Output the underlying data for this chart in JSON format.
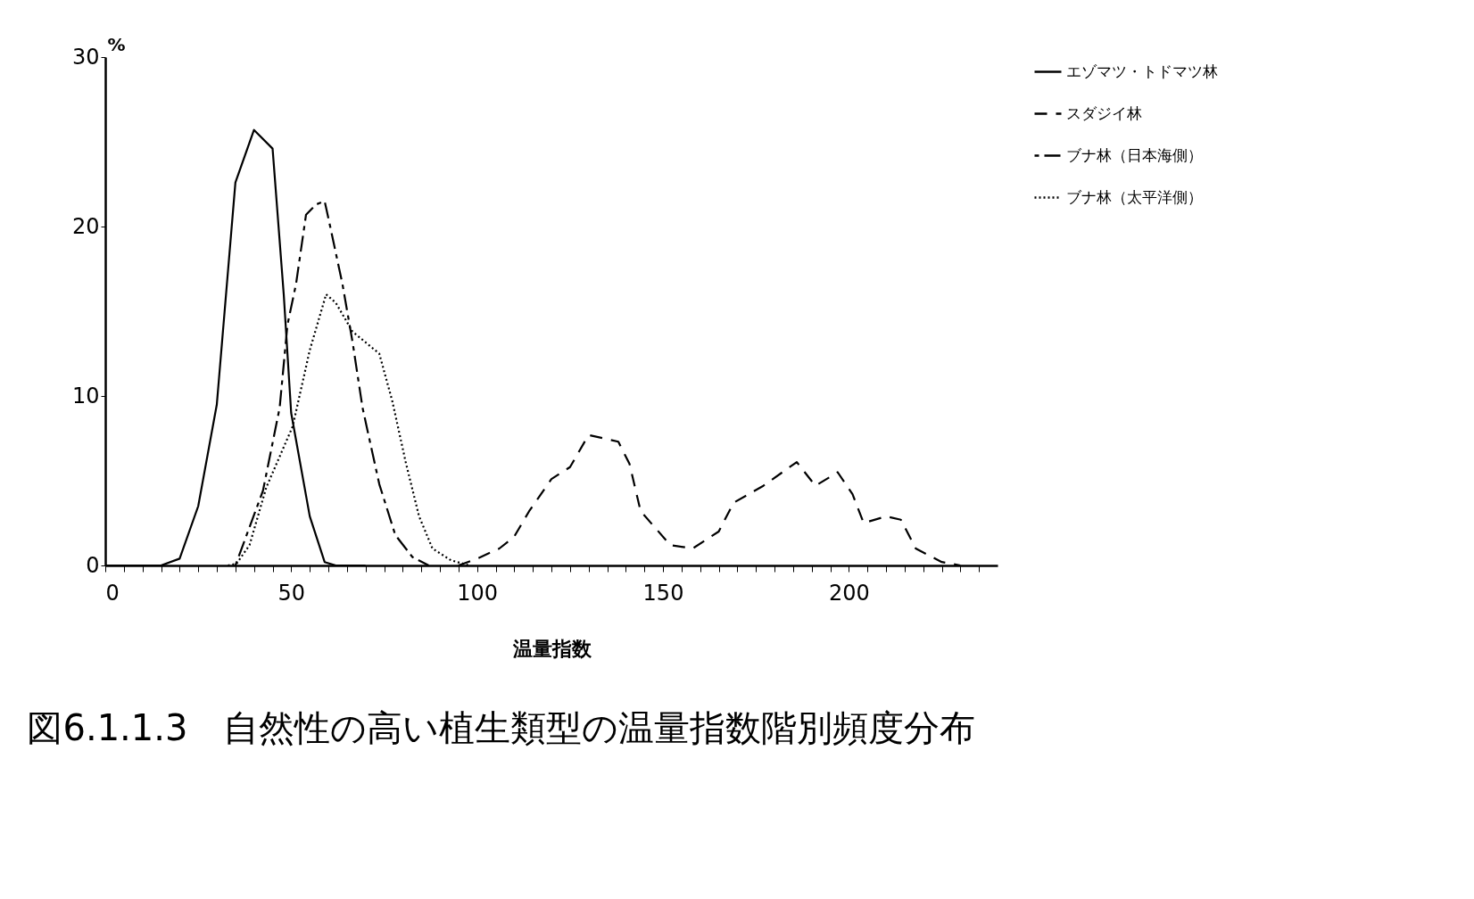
{
  "chart_data": {
    "type": "line",
    "xlabel": "温量指数",
    "ylabel": "%",
    "annotations": [
      "図6.1.1.3　自然性の高い植生類型の温量指数階別頻度分布"
    ],
    "xlim": [
      0,
      240
    ],
    "ylim": [
      0,
      30
    ],
    "xticks": [
      0,
      {
        "value": 5,
        "label": null
      },
      {
        "value": 10,
        "label": null
      },
      {
        "value": 15,
        "label": null
      },
      {
        "value": 20,
        "label": null
      },
      {
        "value": 25,
        "label": null
      },
      {
        "value": 30,
        "label": null
      },
      {
        "value": 35,
        "label": null
      },
      {
        "value": 40,
        "label": null
      },
      {
        "value": 45,
        "label": null
      },
      50,
      {
        "value": 55,
        "label": null
      },
      {
        "value": 60,
        "label": null
      },
      {
        "value": 65,
        "label": null
      },
      {
        "value": 70,
        "label": null
      },
      {
        "value": 75,
        "label": null
      },
      {
        "value": 80,
        "label": null
      },
      {
        "value": 85,
        "label": null
      },
      {
        "value": 90,
        "label": null
      },
      {
        "value": 95,
        "label": null
      },
      100,
      {
        "value": 105,
        "label": null
      },
      {
        "value": 110,
        "label": null
      },
      {
        "value": 115,
        "label": null
      },
      {
        "value": 120,
        "label": null
      },
      {
        "value": 125,
        "label": null
      },
      {
        "value": 130,
        "label": null
      },
      {
        "value": 135,
        "label": null
      },
      {
        "value": 140,
        "label": null
      },
      {
        "value": 145,
        "label": null
      },
      150,
      {
        "value": 155,
        "label": null
      },
      {
        "value": 160,
        "label": null
      },
      {
        "value": 165,
        "label": null
      },
      {
        "value": 170,
        "label": null
      },
      {
        "value": 175,
        "label": null
      },
      {
        "value": 180,
        "label": null
      },
      {
        "value": 185,
        "label": null
      },
      {
        "value": 190,
        "label": null
      },
      {
        "value": 195,
        "label": null
      },
      200,
      {
        "value": 205,
        "label": null
      },
      {
        "value": 210,
        "label": null
      },
      {
        "value": 215,
        "label": null
      },
      {
        "value": 220,
        "label": null
      },
      {
        "value": 225,
        "label": null
      },
      {
        "value": 230,
        "label": null
      },
      {
        "value": 235,
        "label": null
      }
    ],
    "yticks": [
      0,
      10,
      20,
      30
    ],
    "grid": false,
    "legend": "top right",
    "marker": "none",
    "series": [
      {
        "name": "エゾマツ・トドマツ林",
        "color": "#000000",
        "line_style": "solid",
        "x": [
          0,
          15,
          20,
          25,
          30,
          35,
          40,
          45,
          48,
          50,
          55,
          59,
          62,
          70
        ],
        "values": [
          0,
          0,
          0.4,
          3.5,
          9.5,
          22.6,
          25.7,
          24.6,
          16,
          9,
          2.9,
          0.2,
          0,
          0
        ]
      },
      {
        "name": "スダジイ林",
        "color": "#000000",
        "line_style": "dashed",
        "x": [
          95,
          100,
          106,
          110,
          114,
          120,
          125,
          130,
          138,
          141,
          144,
          152,
          158,
          165,
          169,
          177,
          186,
          191,
          197,
          201,
          204,
          210,
          214,
          218,
          225,
          230
        ],
        "values": [
          0,
          0.4,
          1,
          1.7,
          3.2,
          5.1,
          5.8,
          7.7,
          7.3,
          6,
          3.2,
          1.2,
          1,
          2,
          3.7,
          4.7,
          6.1,
          4.7,
          5.5,
          4.2,
          2.5,
          2.9,
          2.7,
          1,
          0.2,
          0
        ]
      },
      {
        "name": "ブナ林（日本海側）",
        "color": "#000000",
        "line_style": "dashdot",
        "x": [
          35,
          42.4,
          46.9,
          49,
          51.3,
          54,
          56.7,
          59,
          60.3,
          63.8,
          66.5,
          69.2,
          73.7,
          78,
          82.6,
          87
        ],
        "values": [
          0,
          4.4,
          9.3,
          14.2,
          16.6,
          20.7,
          21.3,
          21.5,
          20.2,
          16.6,
          13.2,
          9.3,
          4.8,
          1.8,
          0.5,
          0
        ]
      },
      {
        "name": "ブナ林（太平洋側）",
        "color": "#000000",
        "line_style": "dotted",
        "x": [
          33,
          35.3,
          38.8,
          43.3,
          50.4,
          55,
          59.4,
          62,
          66.5,
          73.7,
          77.2,
          80.8,
          84.4,
          88,
          93,
          98
        ],
        "values": [
          0,
          0.1,
          1.2,
          4.6,
          8.2,
          12.7,
          16,
          15.5,
          13.8,
          12.5,
          9.7,
          6.1,
          2.9,
          1,
          0.3,
          0
        ]
      }
    ]
  }
}
